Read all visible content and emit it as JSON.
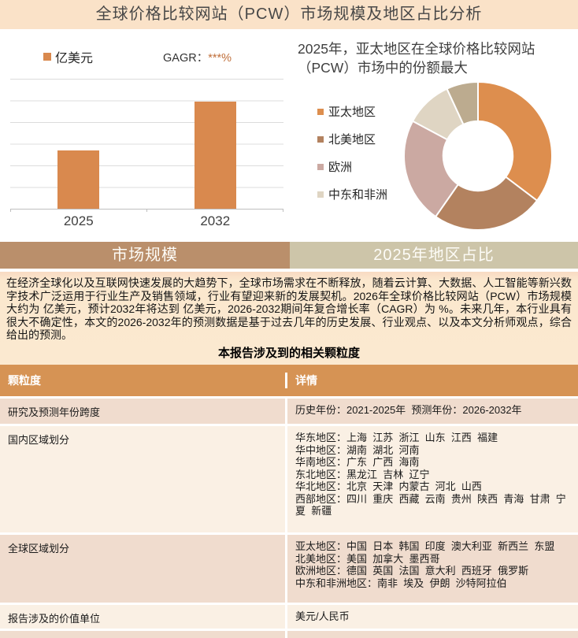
{
  "header": {
    "title": "全球价格比较网站（PCW）市场规模及地区占比分析"
  },
  "tabs": [
    {
      "label": "市场规模"
    },
    {
      "label": "2025年地区占比"
    }
  ],
  "summary": {
    "paragraph": "在经济全球化以及互联网快速发展的大趋势下，全球市场需求在不断释放，随着云计算、大数据、人工智能等新兴数字技术广泛运用于行业生产及销售领域，行业有望迎来新的发展契机。2026年全球价格比较网站（PCW）市场规模大约为 亿美元，预计2032年将达到 亿美元，2026-2032期间年复合增长率（CAGR）为 %。未来几年，本行业具有很大不确定性，本文的2026-2032年的预测数据是基于过去几年的历史发展、行业观点、以及本文分析师观点，综合给出的预测。",
    "caption": "本报告涉及到的相关颗粒度"
  },
  "table": {
    "columns": [
      "颗粒度",
      "详情"
    ],
    "rows": [
      {
        "label": "研究及预测年份跨度",
        "details": [
          "历史年份：2021-2025年  预测年份：2026-2032年"
        ]
      },
      {
        "label": "国内区域划分",
        "details": [
          "华东地区：上海  江苏  浙江  山东  江西  福建",
          "华中地区：湖南  湖北  河南",
          "华南地区：广东  广西  海南",
          "东北地区：黑龙江  吉林  辽宁",
          "华北地区：北京  天津  内蒙古  河北  山西",
          "西部地区：四川  重庆  西藏  云南  贵州  陕西  青海  甘肃  宁夏  新疆"
        ]
      },
      {
        "label": "全球区域划分",
        "details": [
          "亚太地区：中国  日本  韩国  印度  澳大利亚  新西兰  东盟",
          "北美地区：美国  加拿大  墨西哥",
          "欧洲地区：德国  英国  法国  意大利  西班牙  俄罗斯",
          "中东和非洲地区：南非  埃及  伊朗  沙特阿拉伯"
        ]
      },
      {
        "label": "报告涉及的价值单位",
        "details": [
          "美元/人民币"
        ]
      }
    ]
  },
  "colors": {
    "title_bar_bg": "#FAE2C8",
    "bar_fill": "#D9894E",
    "tab_left_bg": "#BA8F6B",
    "tab_right_bg": "#CDC5A9",
    "table_header_bg": "#D69354",
    "row_pink": "#F0DCCE",
    "row_light": "#FAF0E4",
    "summary_bg": "#FBE9D0"
  },
  "chart_data": [
    {
      "type": "bar",
      "title": "",
      "unit_legend": "亿美元",
      "cagr_label": "GAGR：",
      "cagr_value": "***%",
      "categories": [
        "2025",
        "2032"
      ],
      "values": [
        2.7,
        4.95
      ],
      "values_note": "actual figures masked in source (***); values are heights in gridline units",
      "ylim": [
        0,
        6
      ],
      "grid": true,
      "bar_color": "#D9894E",
      "legend_position": "top-left"
    },
    {
      "type": "pie",
      "subtype": "donut",
      "title": "2025年，亚太地区在全球价格比较网站（PCW）市场中的份额最大",
      "labels": [
        "亚太地区",
        "北美地区",
        "欧洲",
        "中东和非洲",
        ""
      ],
      "values": [
        35.3,
        24.4,
        23.1,
        10.3,
        6.9
      ],
      "colors": [
        "#DD8E4E",
        "#B3825F",
        "#CBA9A2",
        "#DFD5C3",
        "#BCAB8F"
      ],
      "legend_labels": [
        "亚太地区",
        "北美地区",
        "欧洲",
        "中东和非洲"
      ],
      "legend_position": "left",
      "inner_radius_ratio": 0.47,
      "start_angle_deg": 0,
      "direction": "clockwise"
    }
  ]
}
